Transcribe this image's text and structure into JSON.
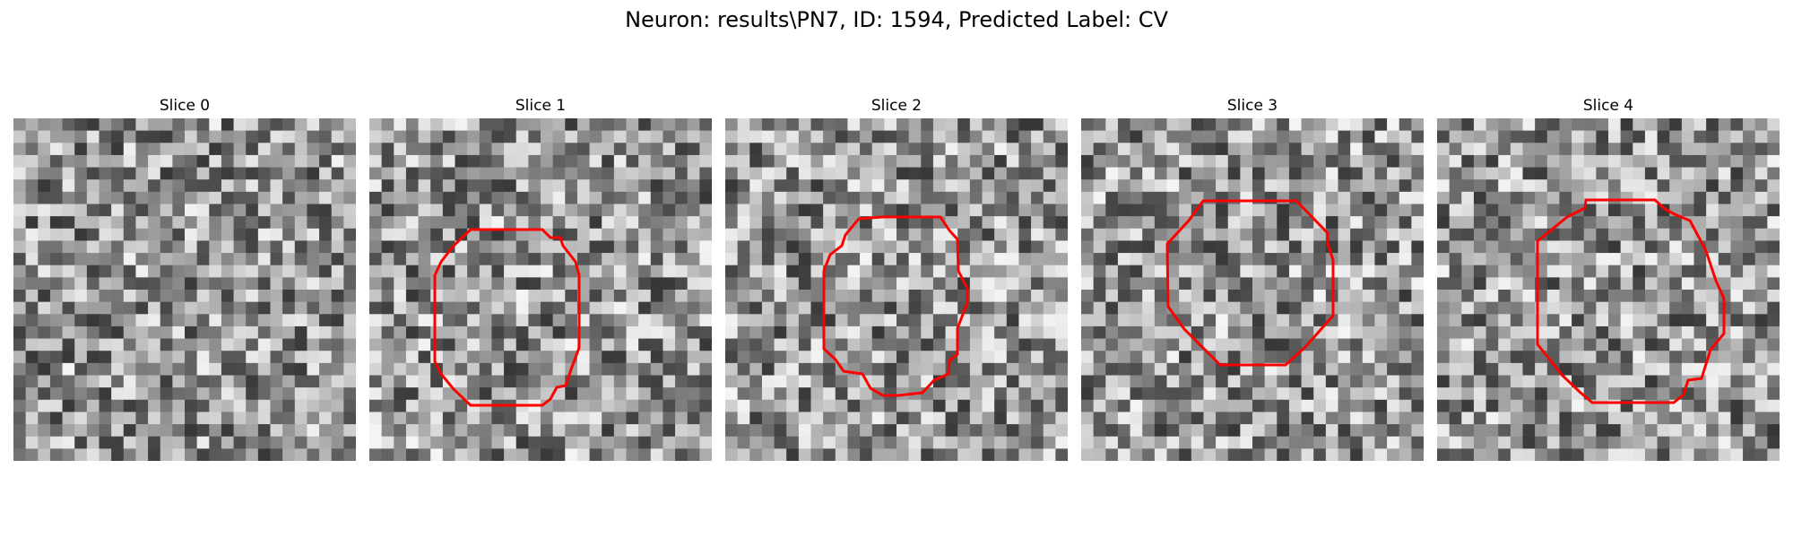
{
  "figure": {
    "title": "Neuron: results\\PN7, ID: 1594, Predicted Label: CV"
  },
  "panels": [
    {
      "title": "Slice 0",
      "contour": false,
      "noise_seed": 11
    },
    {
      "title": "Slice 1",
      "contour": true,
      "noise_seed": 23
    },
    {
      "title": "Slice 2",
      "contour": true,
      "noise_seed": 37
    },
    {
      "title": "Slice 3",
      "contour": true,
      "noise_seed": 51
    },
    {
      "title": "Slice 4",
      "contour": true,
      "noise_seed": 67
    }
  ],
  "colors": {
    "contour": "#ff0000"
  }
}
